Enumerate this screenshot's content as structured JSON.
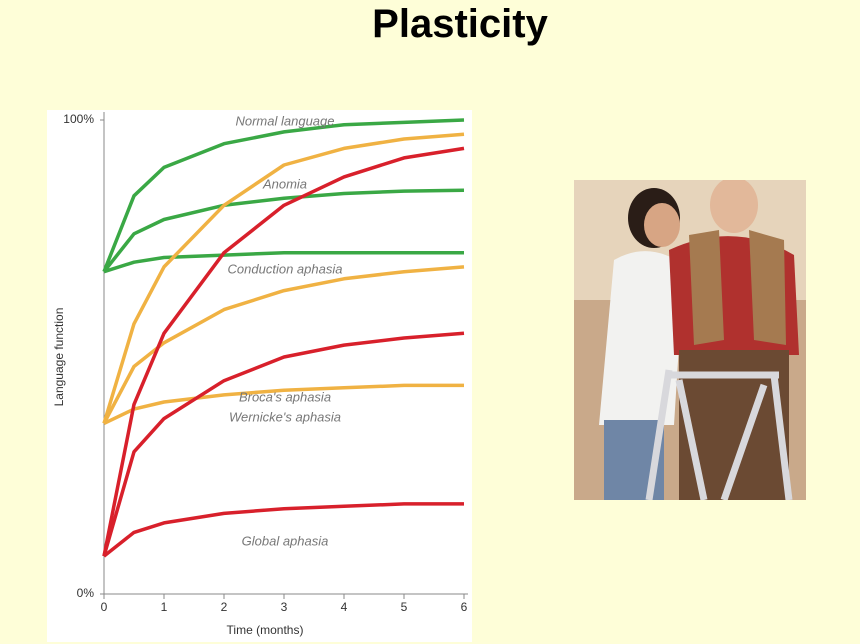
{
  "title": "Plasticity",
  "chart_data": {
    "type": "line",
    "x_label": "Time (months)",
    "y_label": "Language function",
    "x": [
      0,
      0.5,
      1,
      2,
      3,
      4,
      5,
      6
    ],
    "xlim": [
      0,
      6
    ],
    "xticks": [
      0,
      1,
      2,
      3,
      4,
      5,
      6
    ],
    "ylim": [
      0,
      100
    ],
    "yticks": [
      {
        "value": 0,
        "label": "0%"
      },
      {
        "value": 100,
        "label": "100%"
      }
    ],
    "series": [
      {
        "color": "#3aa845",
        "values": [
          68,
          84,
          90,
          95,
          97.5,
          99,
          99.5,
          100
        ]
      },
      {
        "color": "#3aa845",
        "values": [
          68,
          76,
          79,
          82,
          83.5,
          84.5,
          85,
          85.2
        ]
      },
      {
        "color": "#3aa845",
        "values": [
          68,
          70,
          71,
          71.5,
          72,
          72,
          72,
          72
        ]
      },
      {
        "color": "#f0b243",
        "values": [
          36,
          57,
          69,
          82,
          90.5,
          94,
          96,
          97
        ]
      },
      {
        "color": "#f0b243",
        "values": [
          36,
          48,
          53,
          60,
          64,
          66.5,
          68,
          69
        ]
      },
      {
        "color": "#f0b243",
        "values": [
          36,
          39,
          40.5,
          42,
          43,
          43.5,
          44,
          44
        ]
      },
      {
        "color": "#d8202b",
        "values": [
          8,
          40,
          55,
          72,
          82,
          88,
          92,
          94
        ]
      },
      {
        "color": "#d8202b",
        "values": [
          8,
          30,
          37,
          45,
          50,
          52.5,
          54,
          55
        ]
      },
      {
        "color": "#d8202b",
        "values": [
          8,
          13,
          15,
          17,
          18,
          18.5,
          19,
          19
        ]
      }
    ],
    "annotations": [
      "Normal language",
      "Anomia",
      "Conduction aphasia",
      "Broca's aphasia",
      "Wernicke's aphasia",
      "Global aphasia"
    ]
  }
}
